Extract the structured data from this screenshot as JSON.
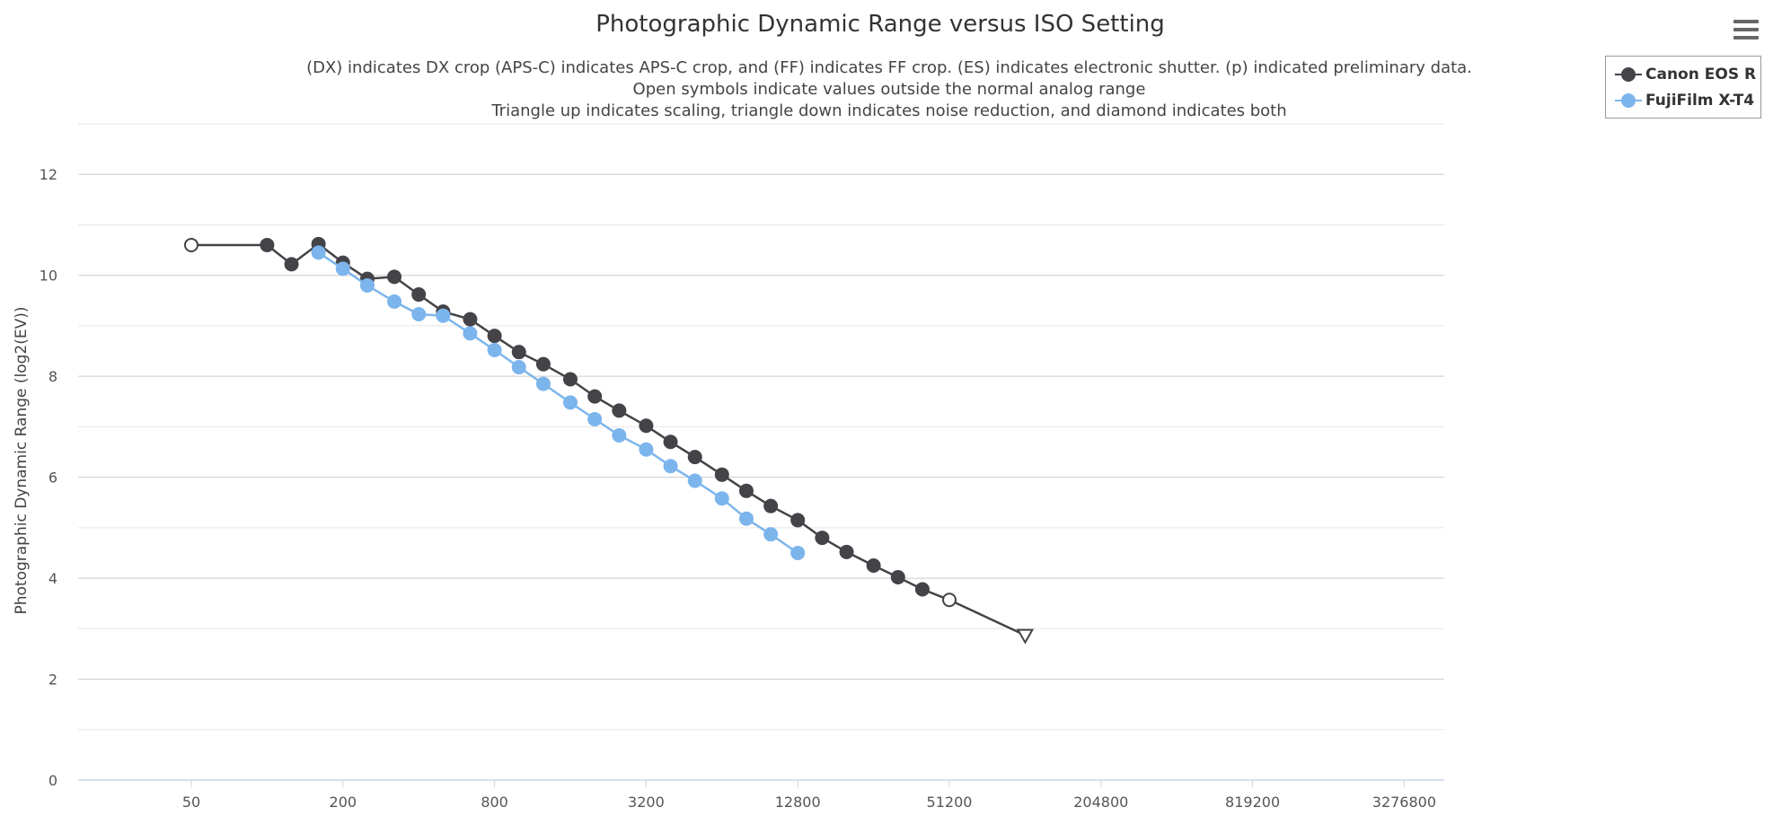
{
  "chart_data": {
    "type": "line",
    "title": "Photographic Dynamic Range versus ISO Setting",
    "subtitle": [
      "(DX) indicates DX crop (APS-C) indicates APS-C crop, and (FF) indicates FF crop. (ES) indicates electronic shutter. (p) indicated preliminary data.",
      "Open symbols indicate values outside the normal analog range",
      "Triangle up indicates scaling, triangle down indicates noise reduction, and diamond indicates both"
    ],
    "ylabel": "Photographic Dynamic Range (log2(EV))",
    "xlabel": "",
    "x_scale": "log2",
    "xlim": [
      25,
      4500000
    ],
    "ylim": [
      0,
      13
    ],
    "x_ticks": [
      50,
      200,
      800,
      3200,
      12800,
      51200,
      204800,
      819200,
      3276800
    ],
    "y_ticks": [
      0,
      2,
      4,
      6,
      8,
      10,
      12
    ],
    "grid": true,
    "legend_position": "top-right",
    "series": [
      {
        "name": "Canon EOS R",
        "color": "#434348",
        "points": [
          {
            "x": 50,
            "y": 10.6,
            "marker": "open-circle"
          },
          {
            "x": 100,
            "y": 10.6,
            "marker": "circle"
          },
          {
            "x": 125,
            "y": 10.22,
            "marker": "circle"
          },
          {
            "x": 160,
            "y": 10.62,
            "marker": "circle"
          },
          {
            "x": 200,
            "y": 10.25,
            "marker": "circle"
          },
          {
            "x": 250,
            "y": 9.93,
            "marker": "circle"
          },
          {
            "x": 320,
            "y": 9.97,
            "marker": "circle"
          },
          {
            "x": 400,
            "y": 9.62,
            "marker": "circle"
          },
          {
            "x": 500,
            "y": 9.28,
            "marker": "circle"
          },
          {
            "x": 640,
            "y": 9.13,
            "marker": "circle"
          },
          {
            "x": 800,
            "y": 8.8,
            "marker": "circle"
          },
          {
            "x": 1000,
            "y": 8.48,
            "marker": "circle"
          },
          {
            "x": 1250,
            "y": 8.24,
            "marker": "circle"
          },
          {
            "x": 1600,
            "y": 7.94,
            "marker": "circle"
          },
          {
            "x": 2000,
            "y": 7.6,
            "marker": "circle"
          },
          {
            "x": 2500,
            "y": 7.32,
            "marker": "circle"
          },
          {
            "x": 3200,
            "y": 7.02,
            "marker": "circle"
          },
          {
            "x": 4000,
            "y": 6.7,
            "marker": "circle"
          },
          {
            "x": 5000,
            "y": 6.4,
            "marker": "circle"
          },
          {
            "x": 6400,
            "y": 6.05,
            "marker": "circle"
          },
          {
            "x": 8000,
            "y": 5.73,
            "marker": "circle"
          },
          {
            "x": 10000,
            "y": 5.43,
            "marker": "circle"
          },
          {
            "x": 12800,
            "y": 5.15,
            "marker": "circle"
          },
          {
            "x": 16000,
            "y": 4.8,
            "marker": "circle"
          },
          {
            "x": 20000,
            "y": 4.52,
            "marker": "circle"
          },
          {
            "x": 25600,
            "y": 4.25,
            "marker": "circle"
          },
          {
            "x": 32000,
            "y": 4.02,
            "marker": "circle"
          },
          {
            "x": 40000,
            "y": 3.78,
            "marker": "circle"
          },
          {
            "x": 51200,
            "y": 3.57,
            "marker": "open-circle"
          },
          {
            "x": 102400,
            "y": 2.87,
            "marker": "open-triangle-down"
          }
        ]
      },
      {
        "name": "FujiFilm X-T4",
        "color": "#7cb5ec",
        "points": [
          {
            "x": 160,
            "y": 10.45,
            "marker": "circle"
          },
          {
            "x": 200,
            "y": 10.13,
            "marker": "circle"
          },
          {
            "x": 250,
            "y": 9.8,
            "marker": "circle"
          },
          {
            "x": 320,
            "y": 9.48,
            "marker": "circle"
          },
          {
            "x": 400,
            "y": 9.23,
            "marker": "circle"
          },
          {
            "x": 500,
            "y": 9.2,
            "marker": "circle"
          },
          {
            "x": 640,
            "y": 8.85,
            "marker": "circle"
          },
          {
            "x": 800,
            "y": 8.52,
            "marker": "circle"
          },
          {
            "x": 1000,
            "y": 8.18,
            "marker": "circle"
          },
          {
            "x": 1250,
            "y": 7.85,
            "marker": "circle"
          },
          {
            "x": 1600,
            "y": 7.48,
            "marker": "circle"
          },
          {
            "x": 2000,
            "y": 7.15,
            "marker": "circle"
          },
          {
            "x": 2500,
            "y": 6.83,
            "marker": "circle"
          },
          {
            "x": 3200,
            "y": 6.55,
            "marker": "circle"
          },
          {
            "x": 4000,
            "y": 6.22,
            "marker": "circle"
          },
          {
            "x": 5000,
            "y": 5.93,
            "marker": "circle"
          },
          {
            "x": 6400,
            "y": 5.58,
            "marker": "circle"
          },
          {
            "x": 8000,
            "y": 5.18,
            "marker": "circle"
          },
          {
            "x": 10000,
            "y": 4.87,
            "marker": "circle"
          },
          {
            "x": 12800,
            "y": 4.5,
            "marker": "circle"
          }
        ]
      }
    ]
  },
  "colors": {
    "grid": "#d8d8d8",
    "axis": "#ccd6eb",
    "text": "#333333",
    "menu_icon": "#666666"
  },
  "menu": {
    "icon": "hamburger-menu-icon"
  }
}
